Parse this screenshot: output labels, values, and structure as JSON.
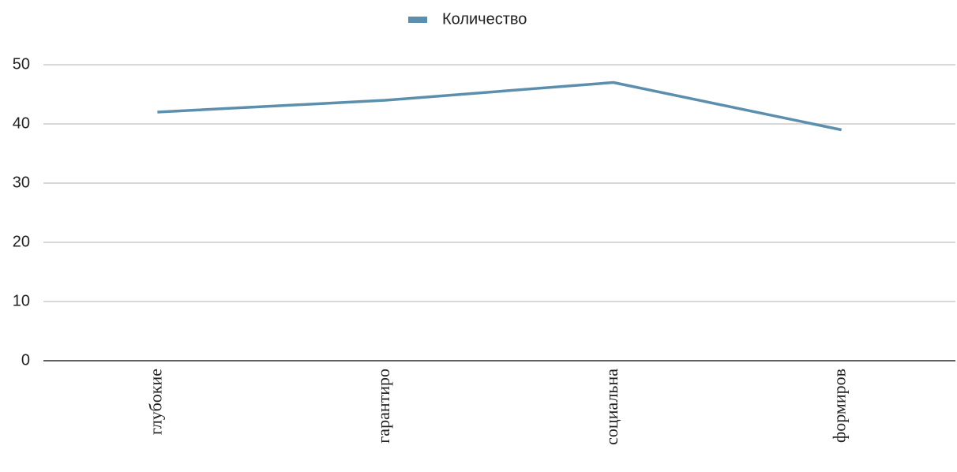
{
  "chart_data": {
    "type": "line",
    "categories": [
      "глубокие",
      "гарантиро",
      "социальна",
      "формиров"
    ],
    "series": [
      {
        "name": "Количество",
        "color": "#5b8fad",
        "values": [
          42,
          44,
          47,
          39
        ]
      }
    ],
    "ylim": [
      0,
      50
    ],
    "yticks": [
      0,
      10,
      20,
      30,
      40,
      50
    ],
    "grid": true,
    "legend": "top"
  }
}
